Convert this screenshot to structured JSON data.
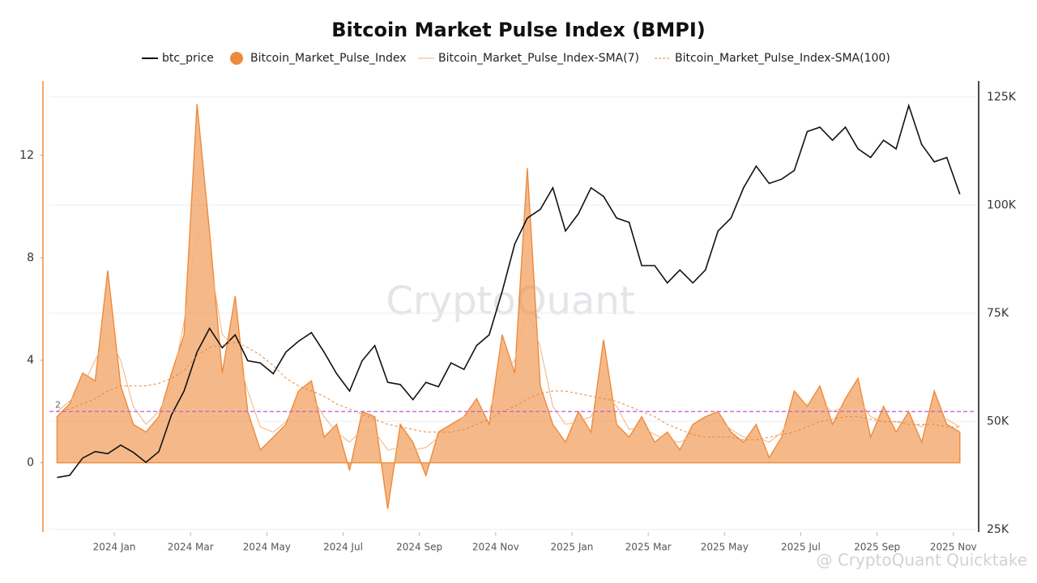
{
  "chart_data": {
    "type": "line",
    "title": "Bitcoin Market Pulse Index (BMPI)",
    "watermark": "CryptoQuant",
    "credit": "@ CryptoQuant Quicktake",
    "threshold": 2,
    "grid": true,
    "x": [
      -1.5,
      -1.17,
      -0.83,
      -0.5,
      -0.17,
      0.17,
      0.5,
      0.83,
      1.17,
      1.5,
      1.83,
      2.17,
      2.5,
      2.83,
      3.17,
      3.5,
      3.83,
      4.17,
      4.5,
      4.83,
      5.17,
      5.5,
      5.83,
      6.17,
      6.5,
      6.83,
      7.17,
      7.5,
      7.83,
      8.17,
      8.5,
      8.83,
      9.17,
      9.5,
      9.83,
      10.17,
      10.5,
      10.83,
      11.17,
      11.5,
      11.83,
      12.17,
      12.5,
      12.83,
      13.17,
      13.5,
      13.83,
      14.17,
      14.5,
      14.83,
      15.17,
      15.5,
      15.83,
      16.17,
      16.5,
      16.83,
      17.17,
      17.5,
      17.83,
      18.17,
      18.5,
      18.83,
      19.17,
      19.5,
      19.83,
      20.17,
      20.5,
      20.83,
      21.17,
      21.5,
      21.83,
      22.17
    ],
    "xlim": [
      -1.7,
      22.6
    ],
    "xticks": [
      {
        "value": 0,
        "label": "2024 Jan"
      },
      {
        "value": 2,
        "label": "2024 Mar"
      },
      {
        "value": 4,
        "label": "2024 May"
      },
      {
        "value": 6,
        "label": "2024 Jul"
      },
      {
        "value": 8,
        "label": "2024 Sep"
      },
      {
        "value": 10,
        "label": "2024 Nov"
      },
      {
        "value": 12,
        "label": "2025 Jan"
      },
      {
        "value": 14,
        "label": "2025 Mar"
      },
      {
        "value": 16,
        "label": "2025 May"
      },
      {
        "value": 18,
        "label": "2025 Jul"
      },
      {
        "value": 20,
        "label": "2025 Sep"
      },
      {
        "value": 22,
        "label": "2025 Nov"
      }
    ],
    "ylim": [
      -2.7,
      14.9
    ],
    "yticks": [
      0,
      4,
      8,
      12
    ],
    "y2lim": [
      24400,
      128700
    ],
    "y2ticks": [
      {
        "value": 25000,
        "label": "25K"
      },
      {
        "value": 50000,
        "label": "50K"
      },
      {
        "value": 75000,
        "label": "75K"
      },
      {
        "value": 100000,
        "label": "100K"
      },
      {
        "value": 125000,
        "label": "125K"
      }
    ],
    "series": [
      {
        "name": "btc_price",
        "color": "#111111",
        "axis": "y2",
        "mark": "line",
        "values": [
          37000,
          37500,
          41500,
          43000,
          42500,
          44500,
          42800,
          40500,
          43000,
          51500,
          57000,
          66000,
          71500,
          67000,
          70000,
          64000,
          63500,
          61000,
          66000,
          68500,
          70500,
          66000,
          61000,
          57000,
          64000,
          67500,
          59000,
          58500,
          55000,
          59000,
          58000,
          63500,
          62000,
          67500,
          70000,
          80000,
          91000,
          97000,
          99000,
          104000,
          94000,
          98000,
          104000,
          102000,
          97000,
          96000,
          86000,
          86000,
          82000,
          85000,
          82000,
          85000,
          94000,
          97000,
          104000,
          109000,
          105000,
          106000,
          108000,
          117000,
          118000,
          115000,
          118000,
          113000,
          111000,
          115000,
          113000,
          123000,
          114000,
          110000,
          111000,
          102500
        ]
      },
      {
        "name": "Bitcoin_Market_Pulse_Index",
        "color": "#ef8a3a",
        "mark": "area",
        "values": [
          1.8,
          2.3,
          3.5,
          3.2,
          7.5,
          3.0,
          1.5,
          1.2,
          1.8,
          3.5,
          5.0,
          14.0,
          9.0,
          3.5,
          6.5,
          2.0,
          0.5,
          1.0,
          1.5,
          2.8,
          3.2,
          1.0,
          1.5,
          -0.3,
          2.0,
          1.8,
          -1.8,
          1.5,
          0.8,
          -0.5,
          1.2,
          1.5,
          1.8,
          2.5,
          1.5,
          5.0,
          3.5,
          11.5,
          3.0,
          1.5,
          0.8,
          2.0,
          1.2,
          4.8,
          1.5,
          1.0,
          1.8,
          0.8,
          1.2,
          0.5,
          1.5,
          1.8,
          2.0,
          1.2,
          0.8,
          1.5,
          0.2,
          1.0,
          2.8,
          2.2,
          3.0,
          1.5,
          2.5,
          3.3,
          1.0,
          2.2,
          1.2,
          2.0,
          0.8,
          2.8,
          1.5,
          1.2
        ]
      },
      {
        "name": "Bitcoin_Market_Pulse_Index-SMA(7)",
        "color": "#f3b27a",
        "mark": "line",
        "values": [
          2.0,
          2.4,
          3.0,
          4.0,
          5.0,
          4.0,
          2.2,
          1.5,
          2.0,
          3.0,
          5.5,
          9.0,
          8.0,
          5.0,
          4.5,
          2.8,
          1.4,
          1.2,
          1.6,
          2.5,
          2.6,
          1.8,
          1.2,
          0.8,
          1.3,
          1.2,
          0.5,
          0.6,
          0.5,
          0.6,
          1.0,
          1.4,
          1.8,
          2.0,
          2.0,
          3.5,
          4.0,
          6.0,
          4.5,
          2.2,
          1.5,
          1.6,
          1.8,
          2.8,
          2.2,
          1.3,
          1.4,
          1.1,
          0.9,
          0.8,
          1.1,
          1.6,
          1.7,
          1.3,
          1.0,
          1.0,
          0.8,
          1.2,
          2.0,
          2.3,
          2.4,
          2.0,
          2.2,
          2.5,
          1.8,
          1.6,
          1.6,
          1.6,
          1.4,
          1.8,
          1.7,
          1.4
        ]
      },
      {
        "name": "Bitcoin_Market_Pulse_Index-SMA(100)",
        "color": "#e8843a",
        "mark": "line",
        "dashed": true,
        "values": [
          2.0,
          2.1,
          2.3,
          2.5,
          2.8,
          3.0,
          3.0,
          3.0,
          3.1,
          3.3,
          3.6,
          4.2,
          4.5,
          4.6,
          4.7,
          4.5,
          4.2,
          3.8,
          3.3,
          3.0,
          2.8,
          2.6,
          2.3,
          2.1,
          1.9,
          1.7,
          1.5,
          1.4,
          1.3,
          1.2,
          1.2,
          1.2,
          1.3,
          1.5,
          1.7,
          2.0,
          2.2,
          2.5,
          2.7,
          2.8,
          2.8,
          2.7,
          2.6,
          2.5,
          2.4,
          2.2,
          2.0,
          1.8,
          1.5,
          1.3,
          1.1,
          1.0,
          1.0,
          1.0,
          0.9,
          0.9,
          1.0,
          1.1,
          1.2,
          1.4,
          1.6,
          1.7,
          1.8,
          1.8,
          1.7,
          1.6,
          1.6,
          1.5,
          1.5,
          1.5,
          1.4,
          1.4
        ]
      }
    ]
  }
}
